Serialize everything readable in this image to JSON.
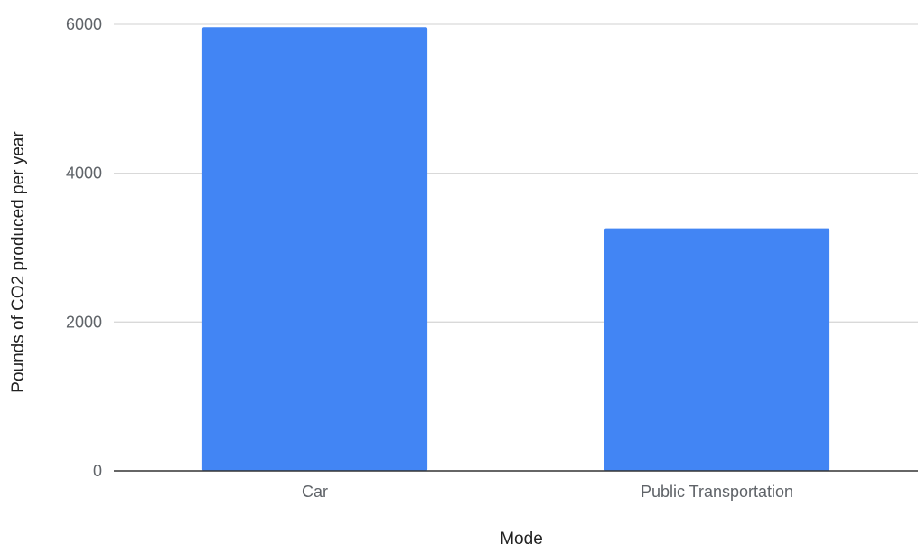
{
  "chart_data": {
    "type": "bar",
    "title": "",
    "xlabel": "Mode",
    "ylabel": "Pounds of CO2 produced per year",
    "categories": [
      "Car",
      "Public Transportation"
    ],
    "values": [
      5960,
      3260
    ],
    "ylim": [
      0,
      6000
    ],
    "yticks": [
      "0",
      "2000",
      "4000",
      "6000"
    ],
    "grid": true,
    "legend": "none",
    "colors": {
      "bar": "#4285f4",
      "grid": "#d9d9d9",
      "baseline": "#333333",
      "tick_text": "#5f6368",
      "title_text": "#222222"
    }
  }
}
